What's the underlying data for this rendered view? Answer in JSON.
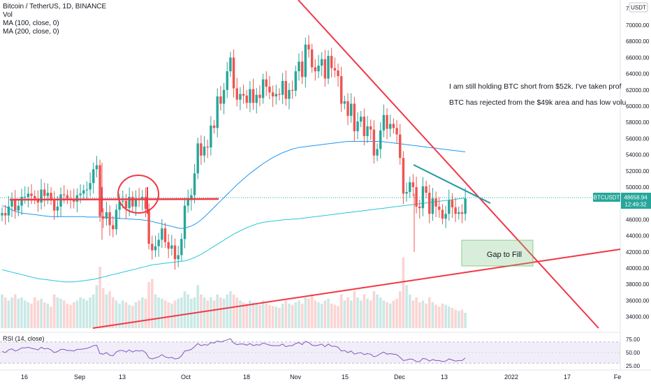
{
  "legend": {
    "symbol": "Bitcoin / TetherUS, 1D, BINANCE",
    "vol": "Vol",
    "ma100": "MA (100, close, 0)",
    "ma200": "MA (200, close, 0)"
  },
  "rsi_label": "RSI (14, close)",
  "annotations": {
    "note1": "I am still holding BTC short from $52k. I've taken prof",
    "note2": "BTC has rejected from the $49k area and has low volu",
    "gap": "Gap to Fill"
  },
  "price_tag": {
    "symbol": "BTCUSDT",
    "price": "48658.94",
    "countdown": "12:49:32"
  },
  "currency_badge": "USDT",
  "chart_data": {
    "type": "candlestick",
    "y_ticks": [
      "34000.00",
      "36000.00",
      "38000.00",
      "40000.00",
      "42000.00",
      "44000.00",
      "46000.00",
      "48000.00",
      "50000.00",
      "52000.00",
      "54000.00",
      "56000.00",
      "58000.00",
      "60000.00",
      "62000.00",
      "64000.00",
      "66000.00",
      "68000.00",
      "70000.00"
    ],
    "y_top_label": "7",
    "rsi_ticks": [
      "75.00",
      "50.00",
      "25.00"
    ],
    "x_ticks": [
      "16",
      "Sep",
      "13",
      "Oct",
      "18",
      "Nov",
      "15",
      "Dec",
      "13",
      "2022",
      "17",
      "Fe"
    ],
    "ylim": [
      32500,
      72000
    ],
    "closes": [
      46800,
      46500,
      47600,
      48500,
      47100,
      47700,
      48800,
      48800,
      49200,
      48900,
      48600,
      48100,
      49700,
      48900,
      49300,
      48500,
      47100,
      47600,
      49100,
      49000,
      48600,
      48500,
      48200,
      49000,
      49200,
      49600,
      49700,
      50500,
      52200,
      52700,
      46400,
      46100,
      46900,
      45300,
      44800,
      47200,
      48200,
      48300,
      47400,
      48800,
      47600,
      48600,
      48400,
      48800,
      47300,
      43000,
      42200,
      42700,
      43500,
      44900,
      43200,
      42400,
      42800,
      41100,
      41600,
      43600,
      47700,
      48400,
      49000,
      51700,
      55400,
      53900,
      55000,
      54900,
      57600,
      57300,
      61200,
      60300,
      62000,
      64300,
      66000,
      62200,
      60800,
      61500,
      61300,
      60400,
      62100,
      60400,
      61400,
      61000,
      63300,
      62400,
      61700,
      61200,
      61500,
      61400,
      63100,
      60900,
      62000,
      61900,
      64300,
      65500,
      63600,
      67600,
      67000,
      64800,
      64300,
      65000,
      65800,
      63400,
      66200,
      64700,
      64400,
      63700,
      60300,
      60600,
      58800,
      60300,
      56900,
      58100,
      58700,
      56300,
      57500,
      57100,
      53900,
      54700,
      57000,
      58900,
      57200,
      57800,
      57300,
      56500,
      53600,
      49200,
      49400,
      50600,
      50000,
      47600,
      47400,
      50100,
      49300,
      46700,
      48600,
      47600,
      47200,
      46100,
      46700,
      48400,
      47500,
      46700,
      46900,
      46700,
      48600
    ],
    "rsi_values": [
      52,
      50,
      55,
      57,
      53,
      55,
      59,
      59,
      60,
      58,
      57,
      55,
      60,
      57,
      58,
      55,
      50,
      52,
      56,
      56,
      54,
      54,
      53,
      56,
      56,
      57,
      58,
      60,
      63,
      64,
      48,
      47,
      50,
      45,
      44,
      51,
      54,
      54,
      51,
      55,
      51,
      54,
      53,
      54,
      50,
      40,
      38,
      40,
      42,
      46,
      42,
      40,
      41,
      38,
      39,
      44,
      53,
      54,
      56,
      61,
      67,
      63,
      65,
      64,
      69,
      68,
      72,
      70,
      72,
      74,
      76,
      68,
      65,
      66,
      66,
      64,
      67,
      63,
      65,
      64,
      68,
      66,
      64,
      63,
      63,
      63,
      66,
      61,
      63,
      63,
      67,
      69,
      65,
      71,
      69,
      64,
      63,
      64,
      66,
      61,
      66,
      62,
      62,
      60,
      53,
      54,
      50,
      53,
      47,
      49,
      50,
      46,
      48,
      47,
      42,
      44,
      48,
      51,
      47,
      48,
      47,
      46,
      41,
      35,
      36,
      38,
      37,
      33,
      33,
      39,
      38,
      34,
      37,
      35,
      35,
      33,
      34,
      38,
      36,
      34,
      35,
      35,
      40
    ],
    "volumes": [
      0.55,
      0.5,
      0.45,
      0.5,
      0.55,
      0.48,
      0.5,
      0.45,
      0.42,
      0.4,
      0.5,
      0.45,
      0.48,
      0.42,
      0.4,
      0.35,
      0.55,
      0.5,
      0.48,
      0.45,
      0.4,
      0.38,
      0.42,
      0.45,
      0.5,
      0.48,
      0.45,
      0.5,
      0.55,
      0.7,
      1.0,
      0.65,
      0.55,
      0.6,
      0.5,
      0.45,
      0.4,
      0.45,
      0.42,
      0.38,
      0.36,
      0.42,
      0.45,
      0.5,
      0.48,
      0.75,
      0.8,
      0.55,
      0.5,
      0.48,
      0.45,
      0.42,
      0.4,
      0.45,
      0.48,
      0.5,
      0.6,
      0.55,
      0.48,
      0.5,
      0.7,
      0.55,
      0.5,
      0.45,
      0.5,
      0.45,
      0.55,
      0.5,
      0.48,
      0.55,
      0.6,
      0.55,
      0.5,
      0.45,
      0.42,
      0.4,
      0.45,
      0.42,
      0.4,
      0.38,
      0.45,
      0.4,
      0.38,
      0.36,
      0.35,
      0.33,
      0.4,
      0.45,
      0.4,
      0.38,
      0.42,
      0.45,
      0.4,
      0.5,
      0.48,
      0.55,
      0.45,
      0.42,
      0.4,
      0.45,
      0.48,
      0.4,
      0.38,
      0.36,
      0.55,
      0.45,
      0.5,
      0.45,
      0.6,
      0.5,
      0.45,
      0.55,
      0.48,
      0.45,
      0.6,
      0.55,
      0.5,
      0.45,
      0.42,
      0.4,
      0.45,
      0.48,
      0.6,
      1.15,
      0.7,
      0.55,
      0.45,
      0.5,
      0.42,
      0.45,
      0.4,
      0.5,
      0.42,
      0.38,
      0.35,
      0.4,
      0.38,
      0.35,
      0.33,
      0.3,
      0.28,
      0.3,
      0.25
    ],
    "ma100": [
      47700,
      47600,
      47400,
      47200,
      47000,
      46900,
      46800,
      46750,
      46700,
      46650,
      46600,
      46550,
      46500,
      46450,
      46400,
      46350,
      46350,
      46350,
      46350,
      46350,
      46350,
      46350,
      46350,
      46350,
      46350,
      46350,
      46300,
      46300,
      46300,
      46300,
      46300,
      46300,
      46250,
      46250,
      46200,
      46200,
      46150,
      46100,
      46100,
      46050,
      46050,
      46000,
      46000,
      45950,
      45900,
      45850,
      45750,
      45650,
      45550,
      45450,
      45350,
      45250,
      45150,
      45050,
      44950,
      44900,
      44950,
      45050,
      45200,
      45400,
      45650,
      45950,
      46300,
      46700,
      47100,
      47500,
      47900,
      48300,
      48700,
      49100,
      49500,
      49900,
      50300,
      50650,
      51000,
      51350,
      51700,
      52000,
      52300,
      52600,
      52900,
      53150,
      53400,
      53650,
      53850,
      54050,
      54250,
      54400,
      54550,
      54700,
      54800,
      54900,
      54950,
      55000,
      55050,
      55100,
      55150,
      55200,
      55250,
      55300,
      55350,
      55400,
      55450,
      55500,
      55550,
      55600,
      55650,
      55650,
      55650,
      55650,
      55650,
      55650,
      55650,
      55650,
      55650,
      55650,
      55650,
      55600,
      55550,
      55500,
      55450,
      55400,
      55350,
      55300,
      55250,
      55200,
      55150,
      55100,
      55050,
      55000,
      54950,
      54900,
      54850,
      54800,
      54750,
      54700,
      54650,
      54600,
      54550,
      54500,
      54450,
      54400,
      54350
    ],
    "ma200": [
      39800,
      39700,
      39600,
      39500,
      39400,
      39300,
      39200,
      39100,
      39000,
      38900,
      38800,
      38700,
      38650,
      38600,
      38550,
      38500,
      38450,
      38400,
      38350,
      38300,
      38300,
      38300,
      38300,
      38350,
      38400,
      38450,
      38500,
      38550,
      38600,
      38700,
      38800,
      38900,
      39000,
      39100,
      39200,
      39300,
      39400,
      39500,
      39600,
      39700,
      39800,
      39900,
      40000,
      40100,
      40200,
      40300,
      40400,
      40450,
      40500,
      40550,
      40600,
      40650,
      40700,
      40750,
      40800,
      40850,
      40900,
      41000,
      41150,
      41300,
      41500,
      41700,
      41950,
      42200,
      42450,
      42700,
      42950,
      43200,
      43450,
      43700,
      43950,
      44200,
      44400,
      44600,
      44800,
      45000,
      45150,
      45300,
      45450,
      45550,
      45650,
      45700,
      45750,
      45800,
      45850,
      45900,
      45950,
      46000,
      46000,
      46050,
      46050,
      46100,
      46150,
      46200,
      46250,
      46300,
      46350,
      46400,
      46450,
      46500,
      46550,
      46600,
      46650,
      46700,
      46750,
      46800,
      46850,
      46900,
      46950,
      47000,
      47050,
      47100,
      47150,
      47200,
      47250,
      47300,
      47350,
      47400,
      47450,
      47500,
      47550,
      47600,
      47650,
      47700,
      47750,
      47800,
      47850,
      47900,
      47950,
      48000,
      48050,
      48100,
      48150,
      48200,
      48250,
      48300,
      48350,
      48400,
      48450,
      48500,
      48550,
      48600,
      48650
    ],
    "colors": {
      "up": "#26a69a",
      "down": "#ef5350",
      "ma100": "#26c6da",
      "ma200": "#2196f3",
      "trend": "#f23645",
      "wedge": "#2196a6",
      "rsi": "#7e57c2"
    }
  }
}
